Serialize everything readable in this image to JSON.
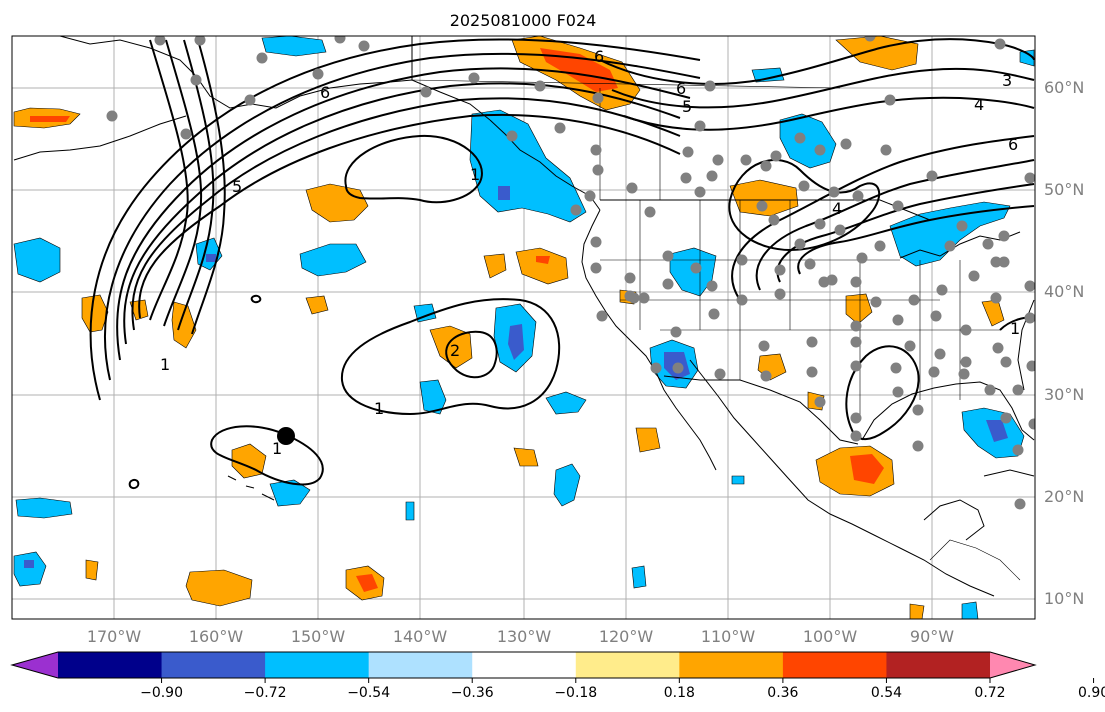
{
  "figure": {
    "title": "2025081000 F024"
  },
  "axes": {
    "lon_ticks": [
      "170°W",
      "160°W",
      "150°W",
      "140°W",
      "130°W",
      "120°W",
      "110°W",
      "100°W",
      "90°W"
    ],
    "lat_ticks": [
      "60°N",
      "50°N",
      "40°N",
      "30°N",
      "20°N",
      "10°N"
    ]
  },
  "contour_labels": [
    "1",
    "1",
    "1",
    "1",
    "1",
    "2",
    "3",
    "4",
    "4",
    "5",
    "5",
    "6",
    "6",
    "6",
    "6"
  ],
  "colorbar": {
    "colors": [
      "#9b30d0",
      "#00008b",
      "#3a5bcc",
      "#00bfff",
      "#aee1ff",
      "#ffffff",
      "#ffec8b",
      "#ffa500",
      "#ff4500",
      "#b22222",
      "#ff88b0"
    ],
    "tick_labels": [
      "−0.90",
      "−0.72",
      "−0.54",
      "−0.36",
      "−0.18",
      "0.18",
      "0.36",
      "0.54",
      "0.72",
      "0.90"
    ]
  },
  "colors": {
    "land_outline": "#000000",
    "grid": "#b0b0b0",
    "station_dot": "#808080",
    "contour": "#000000"
  }
}
